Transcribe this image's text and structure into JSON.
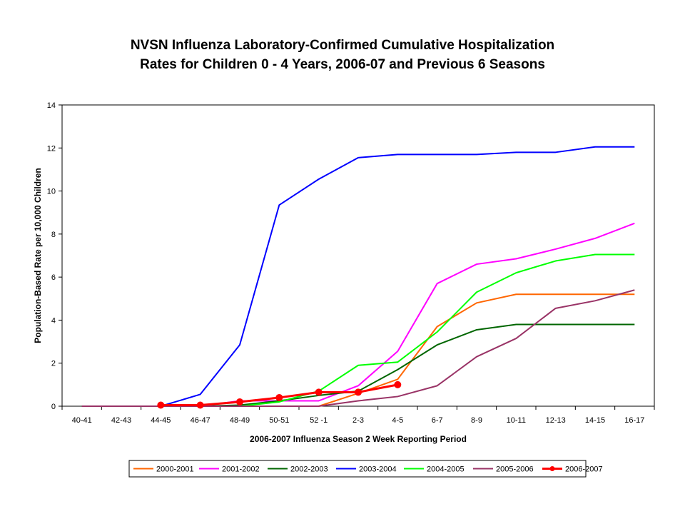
{
  "chart_data": {
    "type": "line",
    "title_line1": "NVSN Influenza Laboratory-Confirmed Cumulative Hospitalization",
    "title_line2": "Rates for Children 0 - 4 Years, 2006-07 and Previous 6 Seasons",
    "xlabel": "2006-2007 Influenza Season 2 Week Reporting Period",
    "ylabel": "Population-Based Rate per 10,000 Children",
    "ylim": [
      0,
      14
    ],
    "yticks": [
      0,
      2,
      4,
      6,
      8,
      10,
      12,
      14
    ],
    "categories": [
      "40-41",
      "42-43",
      "44-45",
      "46-47",
      "48-49",
      "50-51",
      "52 -1",
      "2-3",
      "4-5",
      "6-7",
      "8-9",
      "10-11",
      "12-13",
      "14-15",
      "16-17"
    ],
    "grid": false,
    "legend_position": "bottom",
    "series": [
      {
        "name": "2000-2001",
        "color": "#FF6600",
        "marker": false,
        "values": [
          0,
          0,
          0,
          0,
          0,
          0,
          0,
          0.6,
          1.25,
          3.7,
          4.8,
          5.2,
          5.2,
          5.2,
          5.2
        ]
      },
      {
        "name": "2001-2002",
        "color": "#FF00FF",
        "marker": false,
        "values": [
          0,
          0,
          0,
          0,
          0.25,
          0.25,
          0.25,
          0.95,
          2.55,
          5.7,
          6.6,
          6.85,
          7.3,
          7.8,
          8.5
        ]
      },
      {
        "name": "2002-2003",
        "color": "#006600",
        "marker": false,
        "values": [
          0,
          0,
          0,
          0,
          0.05,
          0.25,
          0.5,
          0.7,
          1.7,
          2.85,
          3.55,
          3.8,
          3.8,
          3.8,
          3.8
        ]
      },
      {
        "name": "2003-2004",
        "color": "#0000FF",
        "marker": false,
        "values": [
          0,
          0,
          0,
          0.55,
          2.85,
          9.35,
          10.55,
          11.55,
          11.7,
          11.7,
          11.7,
          11.8,
          11.8,
          12.05,
          12.05
        ]
      },
      {
        "name": "2004-2005",
        "color": "#00FF00",
        "marker": false,
        "values": [
          0,
          0,
          0,
          0,
          0,
          0.2,
          0.7,
          1.9,
          2.05,
          3.45,
          5.3,
          6.2,
          6.75,
          7.05,
          7.05
        ]
      },
      {
        "name": "2005-2006",
        "color": "#993366",
        "marker": false,
        "values": [
          0,
          0,
          0,
          0,
          0,
          0,
          0,
          0.25,
          0.45,
          0.95,
          2.3,
          3.15,
          4.55,
          4.9,
          5.4
        ]
      },
      {
        "name": "2006-2007",
        "color": "#FF0000",
        "marker": true,
        "values": [
          null,
          null,
          0.05,
          0.05,
          0.2,
          0.4,
          0.65,
          0.65,
          1.0,
          null,
          null,
          null,
          null,
          null,
          null
        ]
      }
    ]
  }
}
